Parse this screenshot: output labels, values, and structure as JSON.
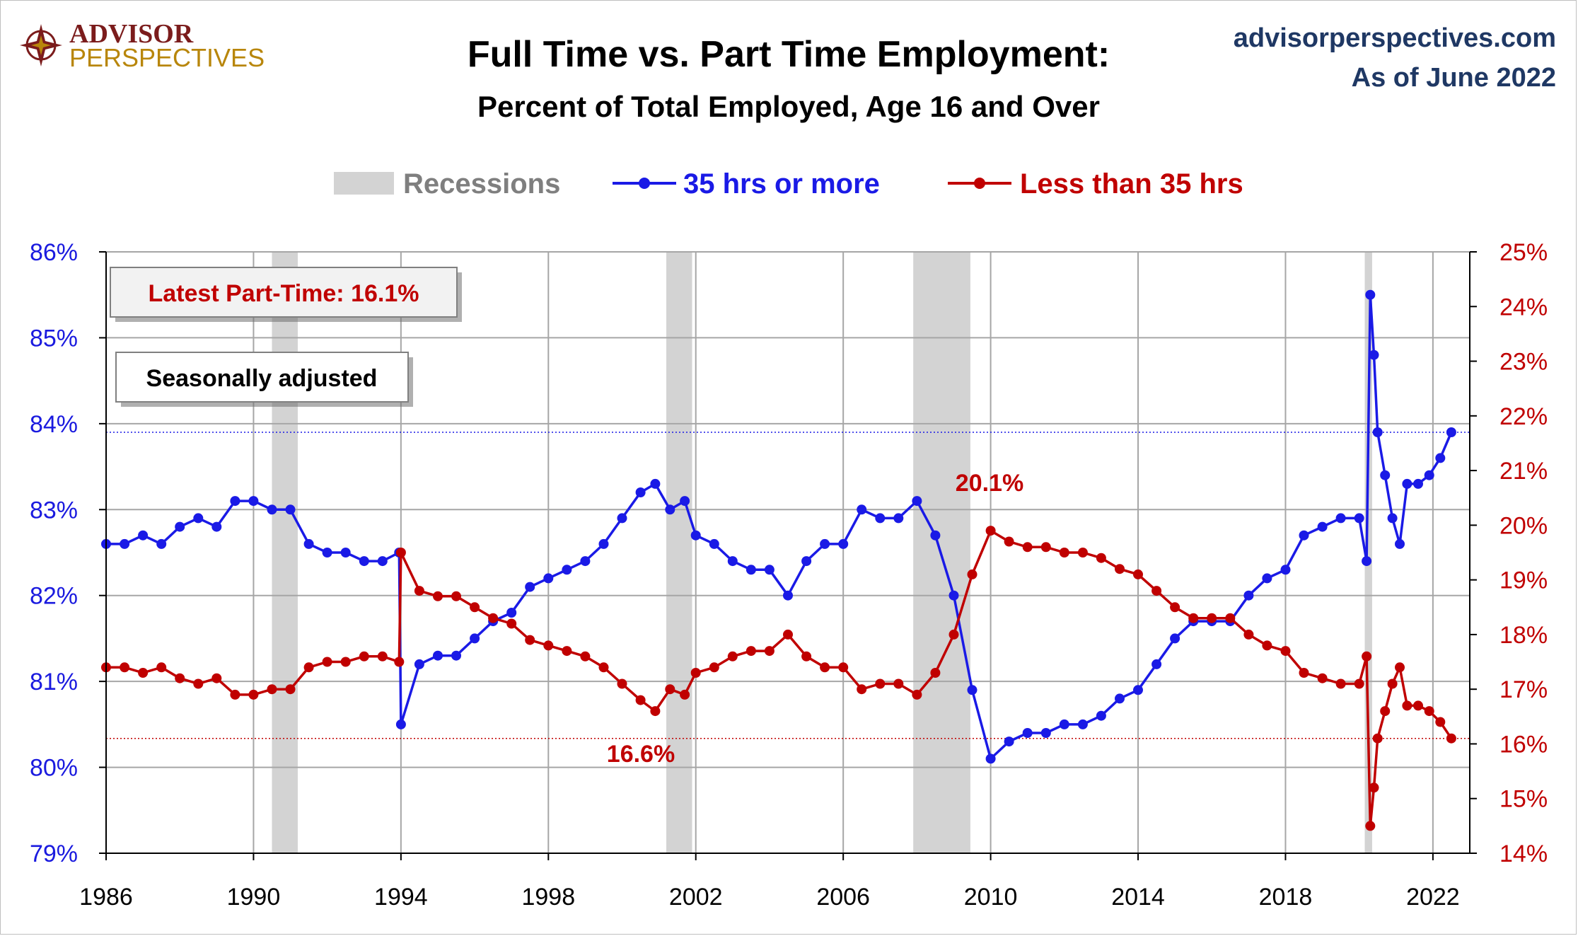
{
  "logo": {
    "line1": "ADVISOR",
    "line2": "PERSPECTIVES"
  },
  "header": {
    "title": "Full Time vs. Part Time Employment:",
    "subtitle": "Percent of Total Employed, Age 16 and Over",
    "source": "advisorperspectives.com",
    "as_of": "As of June 2022"
  },
  "colors": {
    "full_time": "#1a1ae6",
    "part_time": "#c00000",
    "recession": "#d3d3d3",
    "source": "#1f3864"
  },
  "legend": {
    "recessions": "Recessions",
    "full_time": "35 hrs or more",
    "part_time": "Less than 35 hrs"
  },
  "annotations": {
    "latest_box": "Latest Part-Time: 16.1%",
    "season_box": "Seasonally adjusted",
    "peak_label": "20.1%",
    "low_label": "16.6%"
  },
  "chart_data": {
    "type": "line",
    "x_range": [
      1986,
      2023
    ],
    "x_ticks": [
      "1986",
      "1990",
      "1994",
      "1998",
      "2002",
      "2006",
      "2010",
      "2014",
      "2018",
      "2022"
    ],
    "y_left": {
      "range": [
        79,
        86
      ],
      "ticks": [
        "79%",
        "80%",
        "81%",
        "82%",
        "83%",
        "84%",
        "85%",
        "86%"
      ]
    },
    "y_right": {
      "range": [
        14,
        25
      ],
      "ticks": [
        "14%",
        "15%",
        "16%",
        "17%",
        "18%",
        "19%",
        "20%",
        "21%",
        "22%",
        "23%",
        "24%",
        "25%"
      ]
    },
    "grid": true,
    "legend_position": "top-center",
    "recessions": [
      [
        1990.5,
        1991.2
      ],
      [
        2001.2,
        2001.9
      ],
      [
        2007.9,
        2009.45
      ],
      [
        2020.15,
        2020.35
      ]
    ],
    "series": [
      {
        "name": "35 hrs or more",
        "axis": "left",
        "points": [
          [
            1986.0,
            82.6
          ],
          [
            1986.5,
            82.6
          ],
          [
            1987.0,
            82.7
          ],
          [
            1987.5,
            82.6
          ],
          [
            1988.0,
            82.8
          ],
          [
            1988.5,
            82.9
          ],
          [
            1989.0,
            82.8
          ],
          [
            1989.5,
            83.1
          ],
          [
            1990.0,
            83.1
          ],
          [
            1990.5,
            83.0
          ],
          [
            1991.0,
            83.0
          ],
          [
            1991.5,
            82.6
          ],
          [
            1992.0,
            82.5
          ],
          [
            1992.5,
            82.5
          ],
          [
            1993.0,
            82.4
          ],
          [
            1993.5,
            82.4
          ],
          [
            1993.95,
            82.5
          ],
          [
            1994.0,
            80.5
          ],
          [
            1994.5,
            81.2
          ],
          [
            1995.0,
            81.3
          ],
          [
            1995.5,
            81.3
          ],
          [
            1996.0,
            81.5
          ],
          [
            1996.5,
            81.7
          ],
          [
            1997.0,
            81.8
          ],
          [
            1997.5,
            82.1
          ],
          [
            1998.0,
            82.2
          ],
          [
            1998.5,
            82.3
          ],
          [
            1999.0,
            82.4
          ],
          [
            1999.5,
            82.6
          ],
          [
            2000.0,
            82.9
          ],
          [
            2000.5,
            83.2
          ],
          [
            2000.9,
            83.3
          ],
          [
            2001.3,
            83.0
          ],
          [
            2001.7,
            83.1
          ],
          [
            2002.0,
            82.7
          ],
          [
            2002.5,
            82.6
          ],
          [
            2003.0,
            82.4
          ],
          [
            2003.5,
            82.3
          ],
          [
            2004.0,
            82.3
          ],
          [
            2004.5,
            82.0
          ],
          [
            2005.0,
            82.4
          ],
          [
            2005.5,
            82.6
          ],
          [
            2006.0,
            82.6
          ],
          [
            2006.5,
            83.0
          ],
          [
            2007.0,
            82.9
          ],
          [
            2007.5,
            82.9
          ],
          [
            2008.0,
            83.1
          ],
          [
            2008.5,
            82.7
          ],
          [
            2009.0,
            82.0
          ],
          [
            2009.5,
            80.9
          ],
          [
            2010.0,
            80.1
          ],
          [
            2010.5,
            80.3
          ],
          [
            2011.0,
            80.4
          ],
          [
            2011.5,
            80.4
          ],
          [
            2012.0,
            80.5
          ],
          [
            2012.5,
            80.5
          ],
          [
            2013.0,
            80.6
          ],
          [
            2013.5,
            80.8
          ],
          [
            2014.0,
            80.9
          ],
          [
            2014.5,
            81.2
          ],
          [
            2015.0,
            81.5
          ],
          [
            2015.5,
            81.7
          ],
          [
            2016.0,
            81.7
          ],
          [
            2016.5,
            81.7
          ],
          [
            2017.0,
            82.0
          ],
          [
            2017.5,
            82.2
          ],
          [
            2018.0,
            82.3
          ],
          [
            2018.5,
            82.7
          ],
          [
            2019.0,
            82.8
          ],
          [
            2019.5,
            82.9
          ],
          [
            2020.0,
            82.9
          ],
          [
            2020.2,
            82.4
          ],
          [
            2020.3,
            85.5
          ],
          [
            2020.4,
            84.8
          ],
          [
            2020.5,
            83.9
          ],
          [
            2020.7,
            83.4
          ],
          [
            2020.9,
            82.9
          ],
          [
            2021.1,
            82.6
          ],
          [
            2021.3,
            83.3
          ],
          [
            2021.6,
            83.3
          ],
          [
            2021.9,
            83.4
          ],
          [
            2022.2,
            83.6
          ],
          [
            2022.5,
            83.9
          ]
        ]
      },
      {
        "name": "Less than 35 hrs",
        "axis": "right",
        "points": [
          [
            1986.0,
            17.4
          ],
          [
            1986.5,
            17.4
          ],
          [
            1987.0,
            17.3
          ],
          [
            1987.5,
            17.4
          ],
          [
            1988.0,
            17.2
          ],
          [
            1988.5,
            17.1
          ],
          [
            1989.0,
            17.2
          ],
          [
            1989.5,
            16.9
          ],
          [
            1990.0,
            16.9
          ],
          [
            1990.5,
            17.0
          ],
          [
            1991.0,
            17.0
          ],
          [
            1991.5,
            17.4
          ],
          [
            1992.0,
            17.5
          ],
          [
            1992.5,
            17.5
          ],
          [
            1993.0,
            17.6
          ],
          [
            1993.5,
            17.6
          ],
          [
            1993.95,
            17.5
          ],
          [
            1994.0,
            19.5
          ],
          [
            1994.5,
            18.8
          ],
          [
            1995.0,
            18.7
          ],
          [
            1995.5,
            18.7
          ],
          [
            1996.0,
            18.5
          ],
          [
            1996.5,
            18.3
          ],
          [
            1997.0,
            18.2
          ],
          [
            1997.5,
            17.9
          ],
          [
            1998.0,
            17.8
          ],
          [
            1998.5,
            17.7
          ],
          [
            1999.0,
            17.6
          ],
          [
            1999.5,
            17.4
          ],
          [
            2000.0,
            17.1
          ],
          [
            2000.5,
            16.8
          ],
          [
            2000.9,
            16.6
          ],
          [
            2001.3,
            17.0
          ],
          [
            2001.7,
            16.9
          ],
          [
            2002.0,
            17.3
          ],
          [
            2002.5,
            17.4
          ],
          [
            2003.0,
            17.6
          ],
          [
            2003.5,
            17.7
          ],
          [
            2004.0,
            17.7
          ],
          [
            2004.5,
            18.0
          ],
          [
            2005.0,
            17.6
          ],
          [
            2005.5,
            17.4
          ],
          [
            2006.0,
            17.4
          ],
          [
            2006.5,
            17.0
          ],
          [
            2007.0,
            17.1
          ],
          [
            2007.5,
            17.1
          ],
          [
            2008.0,
            16.9
          ],
          [
            2008.5,
            17.3
          ],
          [
            2009.0,
            18.0
          ],
          [
            2009.5,
            19.1
          ],
          [
            2010.0,
            19.9
          ],
          [
            2010.5,
            19.7
          ],
          [
            2011.0,
            19.6
          ],
          [
            2011.5,
            19.6
          ],
          [
            2012.0,
            19.5
          ],
          [
            2012.5,
            19.5
          ],
          [
            2013.0,
            19.4
          ],
          [
            2013.5,
            19.2
          ],
          [
            2014.0,
            19.1
          ],
          [
            2014.5,
            18.8
          ],
          [
            2015.0,
            18.5
          ],
          [
            2015.5,
            18.3
          ],
          [
            2016.0,
            18.3
          ],
          [
            2016.5,
            18.3
          ],
          [
            2017.0,
            18.0
          ],
          [
            2017.5,
            17.8
          ],
          [
            2018.0,
            17.7
          ],
          [
            2018.5,
            17.3
          ],
          [
            2019.0,
            17.2
          ],
          [
            2019.5,
            17.1
          ],
          [
            2020.0,
            17.1
          ],
          [
            2020.2,
            17.6
          ],
          [
            2020.3,
            14.5
          ],
          [
            2020.4,
            15.2
          ],
          [
            2020.5,
            16.1
          ],
          [
            2020.7,
            16.6
          ],
          [
            2020.9,
            17.1
          ],
          [
            2021.1,
            17.4
          ],
          [
            2021.3,
            16.7
          ],
          [
            2021.6,
            16.7
          ],
          [
            2021.9,
            16.6
          ],
          [
            2022.2,
            16.4
          ],
          [
            2022.5,
            16.1
          ]
        ]
      }
    ]
  }
}
